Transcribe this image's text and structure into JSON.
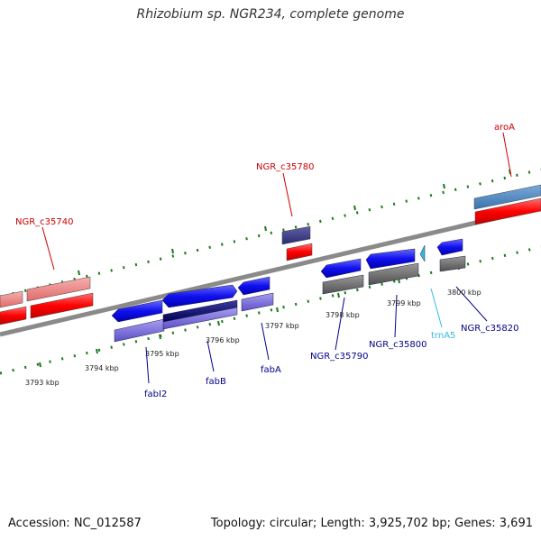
{
  "title": "Rhizobium sp. NGR234, complete genome",
  "footer": {
    "accession": "Accession: NC_012587",
    "topology": "Topology: circular; Length: 3,925,702 bp; Genes: 3,691"
  },
  "scale_labels": [
    "3793 kbp",
    "3794 kbp",
    "3795 kbp",
    "3796 kbp",
    "3797 kbp",
    "3798 kbp",
    "3799 kbp",
    "3800 kbp"
  ],
  "gene_labels": [
    "aroA",
    "NGR_c35780",
    "NGR_c35740",
    "fabI2",
    "fabB",
    "fabA",
    "NGR_c35790",
    "NGR_c35800",
    "trnA5",
    "NGR_c35820"
  ],
  "colors": {
    "label_red": "#cc0000",
    "label_blue": "#00008b",
    "label_cyan": "#33bbdd",
    "tick_green": "#1a7a1a",
    "backbone": "#888888"
  }
}
